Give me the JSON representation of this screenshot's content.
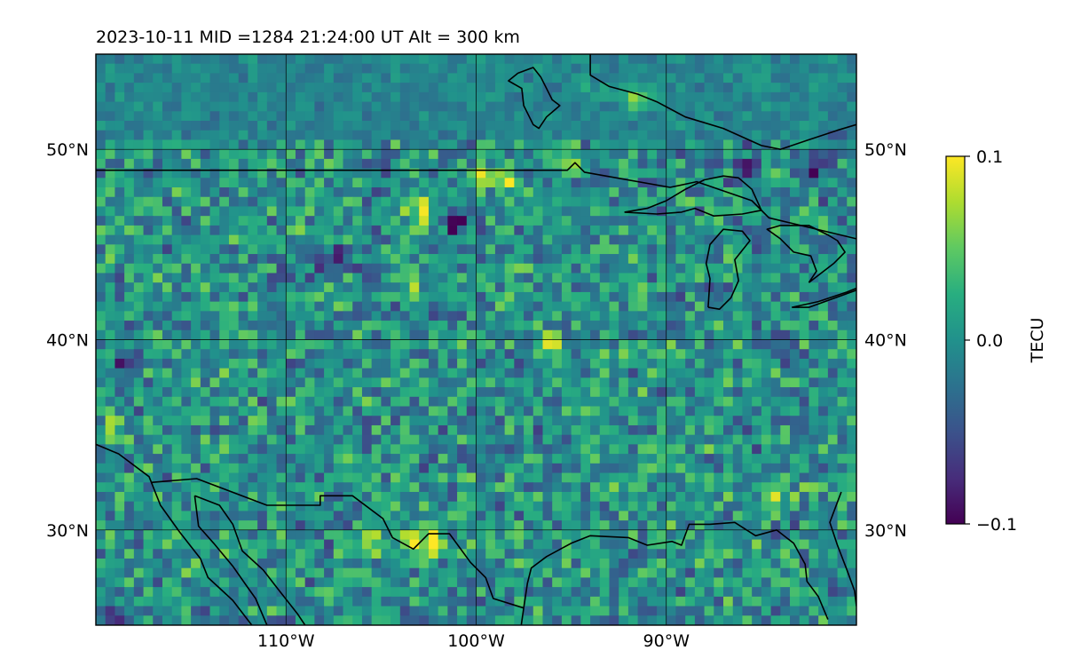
{
  "chart_data": {
    "type": "heatmap",
    "title": "2023-10-11  MID =1284    21:24:00  UT  Alt = 300 km",
    "date": "2023-10-11",
    "mid": 1284,
    "time_ut": "21:24:00",
    "altitude_km": 300,
    "map": {
      "projection": "equirectangular",
      "lon_range": [
        -120,
        -80
      ],
      "lat_range": [
        25,
        55
      ],
      "meridians": [
        -110,
        -100,
        -90
      ],
      "parallels": [
        30,
        40,
        50
      ],
      "grid": true,
      "lon_tick_labels": [
        "110°W",
        "100°W",
        "90°W"
      ],
      "lat_tick_labels": [
        "30°N",
        "40°N",
        "50°N"
      ],
      "coastlines": true
    },
    "colorbar": {
      "label": "TECU",
      "colormap": "viridis",
      "vmin": -0.1,
      "vmax": 0.1,
      "ticks": [
        -0.1,
        0.0,
        0.1
      ],
      "tick_labels": [
        "−0.1",
        "0.0",
        "0.1"
      ],
      "position": "right"
    },
    "grid_resolution_deg": 0.5,
    "background_mean": 0.0,
    "features": [
      {
        "lon": -102.3,
        "lat": 29.3,
        "value": 0.1
      },
      {
        "lon": -103.3,
        "lat": 29.5,
        "value": 0.09
      },
      {
        "lon": -105.8,
        "lat": 29.3,
        "value": 0.08
      },
      {
        "lon": -103.0,
        "lat": 46.8,
        "value": 0.09
      },
      {
        "lon": -103.5,
        "lat": 43.0,
        "value": 0.07
      },
      {
        "lon": -96.2,
        "lat": 39.8,
        "value": 0.1
      },
      {
        "lon": -98.2,
        "lat": 48.3,
        "value": 0.1
      },
      {
        "lon": -99.5,
        "lat": 48.5,
        "value": 0.06
      },
      {
        "lon": -95.4,
        "lat": 49.0,
        "value": 0.07
      },
      {
        "lon": -91.6,
        "lat": 52.6,
        "value": 0.08
      },
      {
        "lon": -93.8,
        "lat": 52.8,
        "value": 0.03
      },
      {
        "lon": -85.8,
        "lat": 49.0,
        "value": -0.1
      },
      {
        "lon": -82.0,
        "lat": 49.1,
        "value": -0.1
      },
      {
        "lon": -81.0,
        "lat": 50.5,
        "value": -0.06
      },
      {
        "lon": -107.5,
        "lat": 44.1,
        "value": -0.09
      },
      {
        "lon": -105.5,
        "lat": 43.8,
        "value": -0.06
      },
      {
        "lon": -101.0,
        "lat": 46.0,
        "value": -0.08
      },
      {
        "lon": -118.5,
        "lat": 38.6,
        "value": -0.08
      },
      {
        "lon": -119.0,
        "lat": 35.2,
        "value": 0.07
      },
      {
        "lon": -83.8,
        "lat": 39.5,
        "value": -0.06
      },
      {
        "lon": -90.0,
        "lat": 39.0,
        "value": 0.05
      },
      {
        "lon": -84.0,
        "lat": 31.8,
        "value": 0.05
      },
      {
        "lon": -81.0,
        "lat": 26.5,
        "value": -0.05
      },
      {
        "lon": -119.5,
        "lat": 25.5,
        "value": -0.08
      }
    ],
    "boundaries": [
      {
        "name": "us-canada-border",
        "points": [
          [
            -120,
            48.9
          ],
          [
            -95.2,
            48.9
          ],
          [
            -94.8,
            49.3
          ],
          [
            -94.3,
            48.8
          ],
          [
            -89.8,
            48.0
          ],
          [
            -88.4,
            48.3
          ],
          [
            -85.5,
            47.3
          ],
          [
            -84.6,
            46.4
          ],
          [
            -80,
            45.3
          ]
        ]
      },
      {
        "name": "lake-superior",
        "points": [
          [
            -92.2,
            46.7
          ],
          [
            -91.0,
            46.9
          ],
          [
            -90.0,
            47.3
          ],
          [
            -89.0,
            47.9
          ],
          [
            -88.0,
            48.4
          ],
          [
            -87.0,
            48.6
          ],
          [
            -86.2,
            48.5
          ],
          [
            -85.5,
            47.9
          ],
          [
            -85.0,
            46.8
          ],
          [
            -86.0,
            46.6
          ],
          [
            -87.5,
            46.5
          ],
          [
            -88.5,
            46.9
          ],
          [
            -89.2,
            46.7
          ],
          [
            -90.5,
            46.6
          ],
          [
            -92.2,
            46.7
          ]
        ]
      },
      {
        "name": "lake-michigan",
        "points": [
          [
            -87.8,
            41.7
          ],
          [
            -87.2,
            41.6
          ],
          [
            -86.6,
            42.2
          ],
          [
            -86.2,
            43.1
          ],
          [
            -86.4,
            44.2
          ],
          [
            -85.6,
            45.2
          ],
          [
            -86.0,
            45.7
          ],
          [
            -87.0,
            45.8
          ],
          [
            -87.7,
            45.0
          ],
          [
            -87.9,
            44.0
          ],
          [
            -87.7,
            43.2
          ],
          [
            -87.8,
            41.7
          ]
        ]
      },
      {
        "name": "lake-huron",
        "points": [
          [
            -82.5,
            43.0
          ],
          [
            -82.1,
            43.6
          ],
          [
            -82.4,
            44.4
          ],
          [
            -83.3,
            44.6
          ],
          [
            -84.0,
            45.3
          ],
          [
            -84.7,
            45.8
          ],
          [
            -84.0,
            46.0
          ],
          [
            -82.5,
            46.0
          ],
          [
            -81.5,
            45.5
          ],
          [
            -81.0,
            45.2
          ],
          [
            -80.6,
            44.6
          ],
          [
            -81.2,
            44.0
          ],
          [
            -82.5,
            43.0
          ]
        ]
      },
      {
        "name": "lake-erie",
        "points": [
          [
            -83.4,
            41.7
          ],
          [
            -82.0,
            42.0
          ],
          [
            -80.5,
            42.5
          ],
          [
            -80,
            42.7
          ],
          [
            -80,
            42.6
          ],
          [
            -82.5,
            41.7
          ],
          [
            -83.4,
            41.7
          ]
        ]
      },
      {
        "name": "hudson-bay-coast",
        "points": [
          [
            -94.0,
            55
          ],
          [
            -94.0,
            53.9
          ],
          [
            -93.0,
            53.3
          ],
          [
            -91.5,
            52.9
          ],
          [
            -90.5,
            52.5
          ],
          [
            -89.0,
            51.7
          ],
          [
            -87.0,
            51.1
          ],
          [
            -85.0,
            50.2
          ],
          [
            -84.0,
            50.0
          ],
          [
            -82.5,
            50.5
          ],
          [
            -81.0,
            51.0
          ],
          [
            -80,
            51.3
          ]
        ]
      },
      {
        "name": "lake-winnipeg",
        "points": [
          [
            -97.8,
            54.0
          ],
          [
            -97.0,
            54.3
          ],
          [
            -96.6,
            53.8
          ],
          [
            -96.0,
            52.6
          ],
          [
            -95.6,
            52.3
          ],
          [
            -96.3,
            51.7
          ],
          [
            -96.7,
            51.1
          ],
          [
            -97.0,
            51.3
          ],
          [
            -97.5,
            52.3
          ],
          [
            -97.6,
            53.2
          ],
          [
            -98.3,
            53.6
          ],
          [
            -97.8,
            54.0
          ]
        ]
      },
      {
        "name": "us-mexico-border",
        "points": [
          [
            -117.1,
            32.5
          ],
          [
            -114.7,
            32.7
          ],
          [
            -111.0,
            31.3
          ],
          [
            -108.2,
            31.3
          ],
          [
            -108.2,
            31.8
          ],
          [
            -106.5,
            31.8
          ],
          [
            -104.9,
            30.6
          ],
          [
            -104.4,
            29.6
          ],
          [
            -103.3,
            29.0
          ],
          [
            -102.5,
            29.8
          ],
          [
            -101.4,
            29.8
          ],
          [
            -100.3,
            28.3
          ],
          [
            -99.5,
            27.5
          ],
          [
            -99.1,
            26.4
          ],
          [
            -97.5,
            25.9
          ]
        ]
      },
      {
        "name": "gulf-of-california-east-coast",
        "points": [
          [
            -114.8,
            31.8
          ],
          [
            -113.5,
            31.3
          ],
          [
            -112.8,
            30.3
          ],
          [
            -112.3,
            28.9
          ],
          [
            -111.2,
            27.9
          ],
          [
            -110.5,
            27.0
          ],
          [
            -109.4,
            25.6
          ],
          [
            -109.0,
            25.0
          ]
        ]
      },
      {
        "name": "baja-west-coast",
        "points": [
          [
            -120,
            34.5
          ],
          [
            -118.8,
            34.0
          ],
          [
            -117.2,
            32.8
          ],
          [
            -116.6,
            31.3
          ],
          [
            -115.6,
            29.9
          ],
          [
            -114.5,
            28.5
          ],
          [
            -114.1,
            27.5
          ],
          [
            -112.8,
            26.3
          ],
          [
            -111.8,
            25.0
          ]
        ]
      },
      {
        "name": "baja-gulf-coast",
        "points": [
          [
            -114.8,
            31.8
          ],
          [
            -114.6,
            30.2
          ],
          [
            -113.8,
            29.3
          ],
          [
            -112.8,
            28.1
          ],
          [
            -112.1,
            27.1
          ],
          [
            -111.6,
            26.4
          ],
          [
            -111.0,
            25.0
          ]
        ]
      },
      {
        "name": "gulf-coast",
        "points": [
          [
            -97.5,
            25.9
          ],
          [
            -97.3,
            27.2
          ],
          [
            -97.1,
            28.0
          ],
          [
            -96.3,
            28.6
          ],
          [
            -95.0,
            29.3
          ],
          [
            -94.0,
            29.7
          ],
          [
            -92.0,
            29.6
          ],
          [
            -91.0,
            29.2
          ],
          [
            -89.7,
            29.4
          ],
          [
            -89.2,
            29.2
          ],
          [
            -88.8,
            30.3
          ],
          [
            -87.7,
            30.3
          ],
          [
            -86.4,
            30.4
          ],
          [
            -85.3,
            29.7
          ],
          [
            -84.2,
            30.0
          ],
          [
            -83.3,
            29.3
          ],
          [
            -82.7,
            28.2
          ],
          [
            -82.6,
            27.3
          ],
          [
            -82.0,
            26.5
          ],
          [
            -81.5,
            25.3
          ]
        ]
      },
      {
        "name": "mexico-gulf-coast",
        "points": [
          [
            -97.5,
            25.9
          ],
          [
            -97.7,
            24.5
          ],
          [
            -98.0,
            25.0
          ]
        ]
      },
      {
        "name": "florida-atlantic-coast",
        "points": [
          [
            -80.8,
            32.0
          ],
          [
            -81.4,
            30.4
          ],
          [
            -81.0,
            29.2
          ],
          [
            -80.5,
            27.9
          ],
          [
            -80.1,
            26.8
          ],
          [
            -80.0,
            26.0
          ]
        ]
      }
    ]
  }
}
